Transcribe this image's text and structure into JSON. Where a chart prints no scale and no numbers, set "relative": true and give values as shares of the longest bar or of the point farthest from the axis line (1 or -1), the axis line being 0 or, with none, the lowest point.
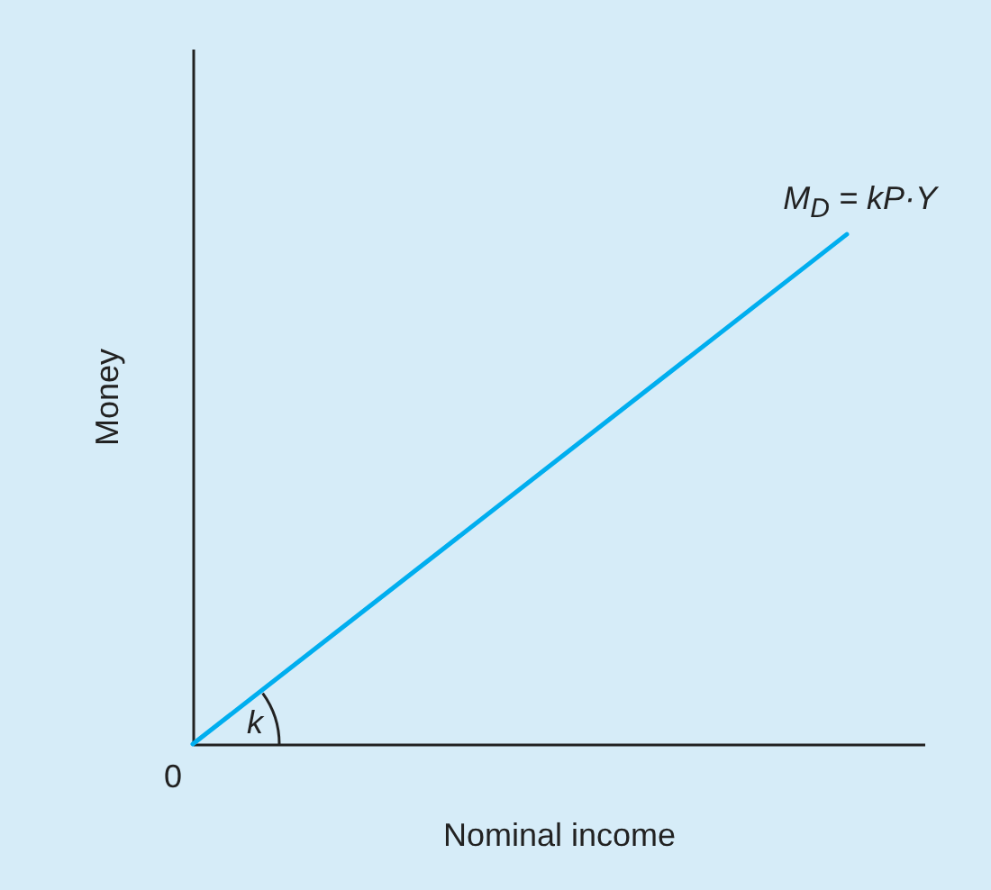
{
  "chart_data": {
    "type": "line",
    "relative": true,
    "xlabel": "Nominal income",
    "ylabel": "Money",
    "categories": [
      null,
      null
    ],
    "series": [
      {
        "name": "M$_{D}$ = kP·Y",
        "color": "#00aeef",
        "values": [
          0,
          1
        ]
      }
    ],
    "annotations": [
      "k",
      "0"
    ],
    "grid": false,
    "legend": false,
    "marker": "none",
    "line_style": "solid"
  }
}
